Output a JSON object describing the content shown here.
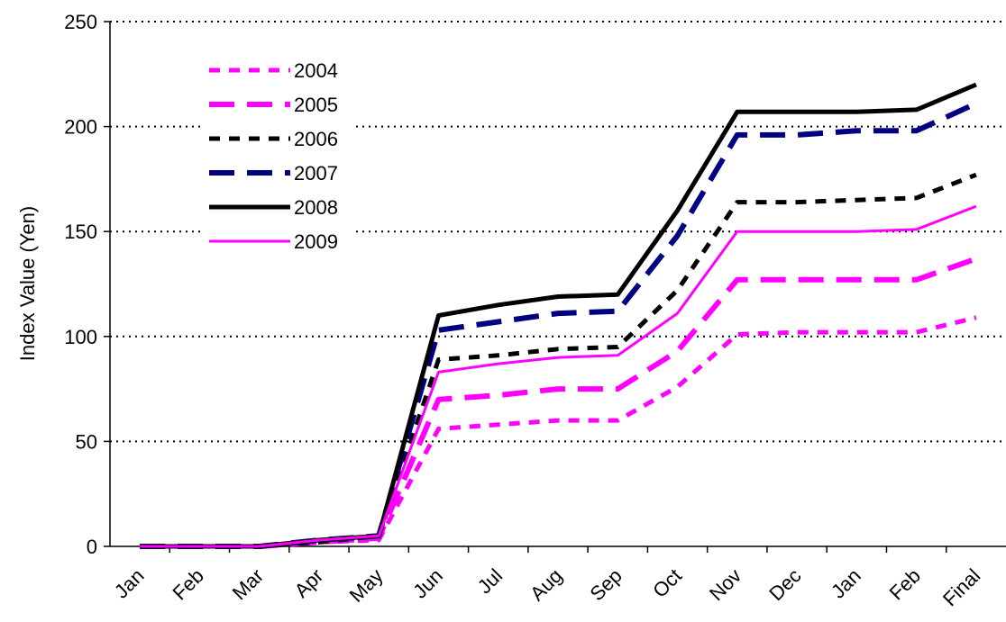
{
  "chart_data": {
    "type": "line",
    "ylabel": "Index Value (Yen)",
    "xlabel": "",
    "ylim": [
      0,
      250
    ],
    "yticks": [
      0,
      50,
      100,
      150,
      200,
      250
    ],
    "grid": "horizontal-dotted",
    "legend_position": "upper-left inside plot",
    "categories": [
      "Jan",
      "Feb",
      "Mar",
      "Apr",
      "May",
      "Jun",
      "Jul",
      "Aug",
      "Sep",
      "Oct",
      "Nov",
      "Dec",
      "Jan",
      "Feb",
      "Final"
    ],
    "series": [
      {
        "name": "2004",
        "color": "#ff00ff",
        "dash": "short-dash",
        "values": [
          0,
          0,
          0,
          2,
          3,
          56,
          58,
          60,
          60,
          76,
          101,
          102,
          102,
          102,
          109
        ]
      },
      {
        "name": "2005",
        "color": "#ff00ff",
        "dash": "long-dash",
        "values": [
          0,
          0,
          0,
          2,
          4,
          70,
          72,
          75,
          75,
          93,
          127,
          127,
          127,
          127,
          137
        ]
      },
      {
        "name": "2006",
        "color": "#000000",
        "dash": "short-dash",
        "values": [
          0,
          0,
          0,
          2,
          5,
          89,
          91,
          94,
          95,
          122,
          164,
          164,
          165,
          166,
          177
        ]
      },
      {
        "name": "2007",
        "color": "#000080",
        "dash": "long-dash",
        "values": [
          0,
          0,
          0,
          3,
          5,
          103,
          107,
          111,
          112,
          148,
          196,
          196,
          198,
          198,
          211
        ]
      },
      {
        "name": "2008",
        "color": "#000000",
        "dash": "solid",
        "values": [
          0,
          0,
          0,
          3,
          5,
          110,
          115,
          119,
          120,
          160,
          207,
          207,
          207,
          208,
          220
        ]
      },
      {
        "name": "2009",
        "color": "#ff00ff",
        "dash": "solid-thin",
        "values": [
          0,
          0,
          0,
          3,
          5,
          83,
          87,
          90,
          91,
          111,
          150,
          150,
          150,
          151,
          162
        ]
      }
    ]
  }
}
